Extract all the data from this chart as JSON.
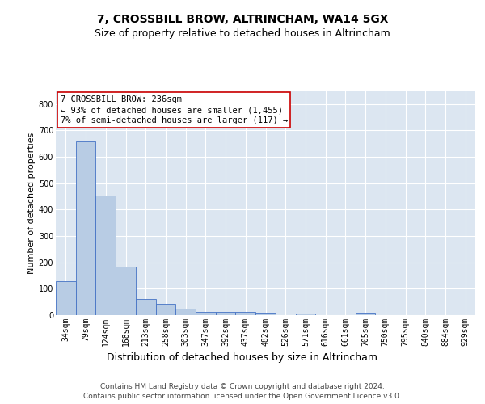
{
  "title": "7, CROSSBILL BROW, ALTRINCHAM, WA14 5GX",
  "subtitle": "Size of property relative to detached houses in Altrincham",
  "xlabel": "Distribution of detached houses by size in Altrincham",
  "ylabel": "Number of detached properties",
  "categories": [
    "34sqm",
    "79sqm",
    "124sqm",
    "168sqm",
    "213sqm",
    "258sqm",
    "303sqm",
    "347sqm",
    "392sqm",
    "437sqm",
    "482sqm",
    "526sqm",
    "571sqm",
    "616sqm",
    "661sqm",
    "705sqm",
    "750sqm",
    "795sqm",
    "840sqm",
    "884sqm",
    "929sqm"
  ],
  "values": [
    128,
    658,
    452,
    185,
    60,
    43,
    25,
    12,
    13,
    11,
    8,
    0,
    7,
    0,
    0,
    8,
    0,
    0,
    0,
    0,
    0
  ],
  "bar_color": "#b8cce4",
  "bar_edge_color": "#4472c4",
  "background_color": "#dce6f1",
  "grid_color": "#ffffff",
  "annotation_text": "7 CROSSBILL BROW: 236sqm\n← 93% of detached houses are smaller (1,455)\n7% of semi-detached houses are larger (117) →",
  "annotation_box_color": "#ffffff",
  "annotation_box_edge_color": "#cc0000",
  "ylim": [
    0,
    850
  ],
  "yticks": [
    0,
    100,
    200,
    300,
    400,
    500,
    600,
    700,
    800
  ],
  "footer": "Contains HM Land Registry data © Crown copyright and database right 2024.\nContains public sector information licensed under the Open Government Licence v3.0.",
  "title_fontsize": 10,
  "subtitle_fontsize": 9,
  "xlabel_fontsize": 9,
  "ylabel_fontsize": 8,
  "tick_fontsize": 7,
  "annotation_fontsize": 7.5,
  "footer_fontsize": 6.5
}
